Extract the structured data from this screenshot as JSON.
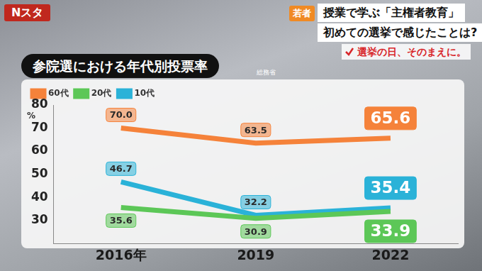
{
  "chart_data": {
    "type": "line",
    "title": "参院選における年代別投票率",
    "source": "総務省",
    "ylabel": "%",
    "annotations": [
      "Nスタ",
      "若者",
      "授業で学ぶ「主権者教育」",
      "初めての選挙で感じたことは?",
      "選挙の日、そのまえに。"
    ],
    "categories": [
      "2016年",
      "2019",
      "2022"
    ],
    "series": [
      {
        "name": "60代",
        "color": "#f5823a",
        "values": [
          70.0,
          63.5,
          65.6
        ],
        "value_labels": [
          "70.0",
          "63.5",
          "65.6"
        ]
      },
      {
        "name": "20代",
        "color": "#5cc757",
        "values": [
          35.6,
          30.9,
          33.9
        ],
        "value_labels": [
          "35.6",
          "30.9",
          "33.9"
        ]
      },
      {
        "name": "10代",
        "color": "#2ab2d8",
        "values": [
          46.7,
          32.2,
          35.4
        ],
        "value_labels": [
          "46.7",
          "32.2",
          "35.4"
        ]
      }
    ],
    "ylim": [
      20,
      80
    ],
    "yticks": [
      30,
      40,
      50,
      60,
      70,
      80
    ],
    "grid": false,
    "legend": "upper left",
    "data_labels": true
  }
}
